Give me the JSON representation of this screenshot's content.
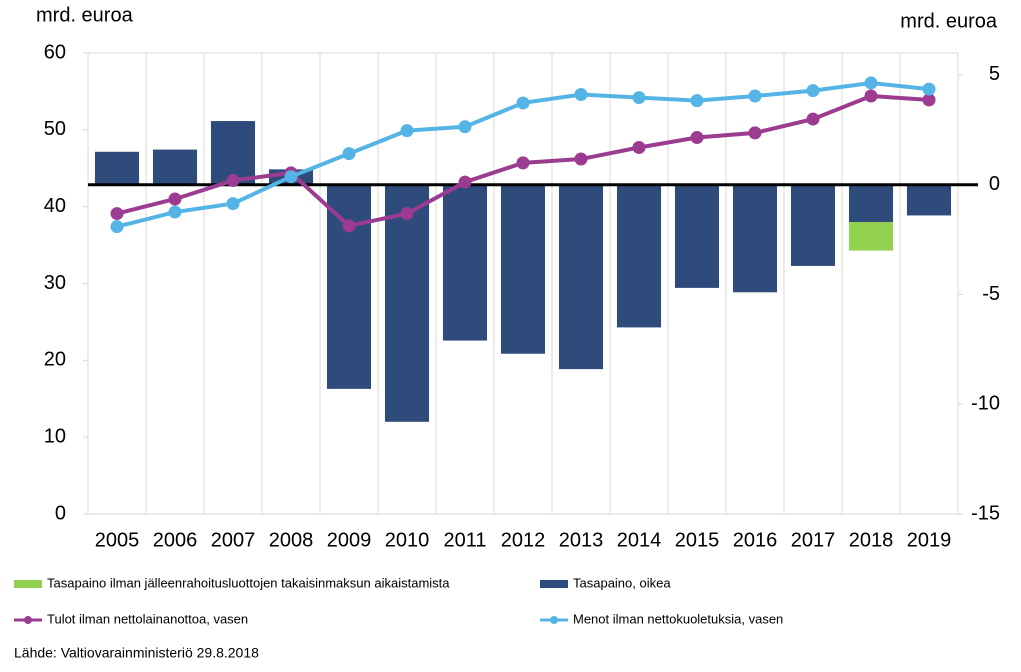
{
  "chart_data": {
    "type": "combo",
    "y_label": "mrd. euroa",
    "y2_label": "mrd. euroa",
    "categories": [
      "2005",
      "2006",
      "2007",
      "2008",
      "2009",
      "2010",
      "2011",
      "2012",
      "2013",
      "2014",
      "2015",
      "2016",
      "2017",
      "2018",
      "2019"
    ],
    "ylim": [
      0,
      60
    ],
    "yticks": [
      0,
      10,
      20,
      30,
      40,
      50,
      60
    ],
    "y2lim": [
      -15,
      6
    ],
    "y2ticks": [
      5,
      0,
      -5,
      -10,
      -15
    ],
    "series": [
      {
        "name": "Tasapaino ilman jälleenrahoitusluottojen takaisinmaksun aikaistamista",
        "type": "bar",
        "axis": "y2",
        "color": "#92d050",
        "values": [
          null,
          null,
          null,
          null,
          null,
          null,
          null,
          null,
          null,
          null,
          null,
          null,
          null,
          -1.3,
          null
        ]
      },
      {
        "name": "Tasapaino, oikea",
        "type": "bar",
        "axis": "y2",
        "color": "#2f4b7c",
        "values": [
          1.5,
          1.6,
          2.9,
          0.7,
          -9.3,
          -10.8,
          -7.1,
          -7.7,
          -8.4,
          -6.5,
          -4.7,
          -4.9,
          -3.7,
          -1.7,
          -1.4
        ]
      },
      {
        "name": "Tulot ilman nettolainanottoa, vasen",
        "type": "line",
        "color": "#9b3c91",
        "values": [
          39.1,
          41.0,
          43.4,
          44.4,
          37.5,
          39.1,
          43.2,
          45.7,
          46.2,
          47.7,
          49.0,
          49.6,
          51.4,
          54.4,
          53.9
        ]
      },
      {
        "name": "Menot ilman nettokuoletuksia, vasen",
        "type": "line",
        "color": "#55b4e6",
        "values": [
          37.4,
          39.3,
          40.4,
          43.9,
          46.9,
          49.9,
          50.4,
          53.5,
          54.6,
          54.2,
          53.8,
          54.4,
          55.1,
          56.1,
          55.3
        ]
      }
    ],
    "source": "Lähde: Valtiovarainministeriö 29.8.2018"
  }
}
